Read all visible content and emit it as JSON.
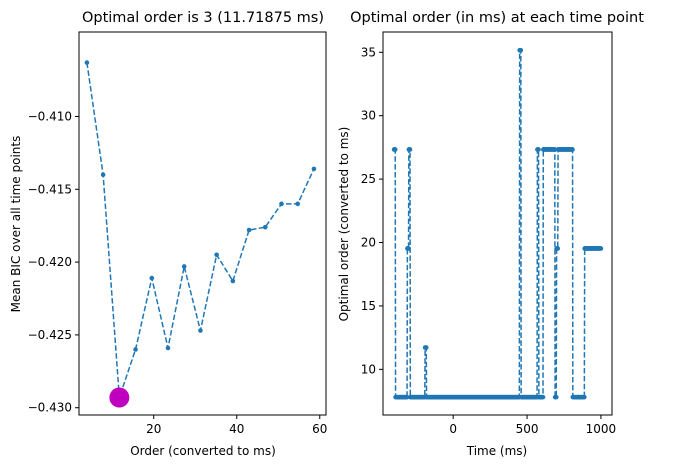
{
  "chart_data": [
    {
      "type": "line",
      "title": "Optimal order is 3 (11.71875 ms)",
      "xlabel": "Order (converted to ms)",
      "ylabel": "Mean BIC over all time points",
      "xlim": [
        2.0,
        61.5
      ],
      "ylim": [
        -0.4305,
        -0.4042
      ],
      "xticks": [
        20,
        40,
        60
      ],
      "xtick_labels": [
        "20",
        "40",
        "60"
      ],
      "yticks": [
        -0.43,
        -0.425,
        -0.42,
        -0.415,
        -0.41
      ],
      "ytick_labels": [
        "−0.430",
        "−0.425",
        "−0.420",
        "−0.415",
        "−0.410"
      ],
      "series": [
        {
          "name": "Mean BIC",
          "color": "#1f77b4",
          "x": [
            3.90625,
            7.8125,
            11.71875,
            15.625,
            19.53125,
            23.4375,
            27.34375,
            31.25,
            35.15625,
            39.0625,
            42.96875,
            46.875,
            50.78125,
            54.6875,
            58.59375
          ],
          "y": [
            -0.4063,
            -0.414,
            -0.4293,
            -0.426,
            -0.4211,
            -0.4259,
            -0.4203,
            -0.4247,
            -0.4195,
            -0.4213,
            -0.4178,
            -0.4176,
            -0.416,
            -0.416,
            -0.4136
          ]
        }
      ],
      "highlight": {
        "x": 11.71875,
        "y": -0.4293,
        "color": "#bf00bf"
      }
    },
    {
      "type": "line",
      "title": "Optimal order (in ms) at each time point",
      "xlabel": "Time (ms)",
      "ylabel": "Optimal order (converted to ms)",
      "xlim": [
        -475,
        1075
      ],
      "ylim": [
        6.4,
        36.6
      ],
      "xticks": [
        0,
        500,
        1000
      ],
      "xtick_labels": [
        "0",
        "500",
        "1000"
      ],
      "yticks": [
        10,
        15,
        20,
        25,
        30,
        35
      ],
      "ytick_labels": [
        "10",
        "15",
        "20",
        "25",
        "30",
        "35"
      ],
      "series": [
        {
          "name": "Optimal order",
          "color": "#1f77b4",
          "segments": [
            [
              -400,
              27.34
            ],
            [
              -390,
              7.81
            ],
            [
              -320,
              7.81
            ],
            [
              -310,
              19.53
            ],
            [
              -300,
              27.34
            ],
            [
              -290,
              7.81
            ],
            [
              -200,
              7.81
            ],
            [
              -190,
              11.72
            ],
            [
              -180,
              7.81
            ],
            [
              440,
              7.81
            ],
            [
              450,
              35.16
            ],
            [
              460,
              7.81
            ],
            [
              560,
              7.81
            ],
            [
              570,
              27.34
            ],
            [
              580,
              7.81
            ],
            [
              600,
              7.81
            ],
            [
              610,
              27.34
            ],
            [
              680,
              27.34
            ],
            [
              690,
              7.81
            ],
            [
              700,
              19.53
            ],
            [
              710,
              27.34
            ],
            [
              800,
              27.34
            ],
            [
              810,
              7.81
            ],
            [
              880,
              7.81
            ],
            [
              890,
              19.53
            ],
            [
              1000,
              19.53
            ]
          ],
          "step_ms": 3.90625
        }
      ]
    }
  ]
}
